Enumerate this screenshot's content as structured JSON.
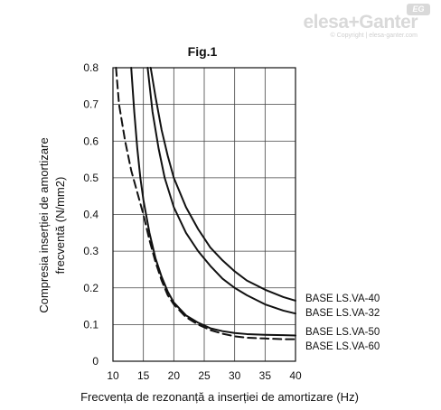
{
  "watermark": {
    "brand": "elesa+Ganter",
    "badge": "EG",
    "copyright": "© Copyright | elesa-ganter.com"
  },
  "chart_data": {
    "type": "line",
    "title": "Fig.1",
    "xlabel": "Frecvența de rezonanță a inserției de amortizare (Hz)",
    "ylabel_lines": [
      "Compresia inserției de amortizare",
      "frecventă (N/mm2)"
    ],
    "xlim": [
      10,
      40
    ],
    "ylim": [
      0,
      0.8
    ],
    "x_ticks": [
      10,
      15,
      20,
      25,
      30,
      35,
      40
    ],
    "y_ticks": [
      0,
      0.1,
      0.2,
      0.3,
      0.4,
      0.5,
      0.6,
      0.7,
      0.8
    ],
    "x_tick_labels": [
      "10",
      "15",
      "20",
      "25",
      "30",
      "35",
      "40"
    ],
    "y_tick_labels": [
      "0",
      "0.1",
      "0.2",
      "0.3",
      "0.4",
      "0.5",
      "0.6",
      "0.7",
      "0.8"
    ],
    "grid": true,
    "series": [
      {
        "name": "BASE LS.VA-40",
        "style": "solid",
        "x": [
          16.2,
          17,
          18,
          19,
          20,
          22,
          24,
          26,
          28,
          30,
          32,
          35,
          38,
          40
        ],
        "y": [
          0.8,
          0.72,
          0.63,
          0.56,
          0.5,
          0.42,
          0.36,
          0.31,
          0.275,
          0.245,
          0.22,
          0.195,
          0.175,
          0.165
        ]
      },
      {
        "name": "BASE LS.VA-32",
        "style": "solid",
        "x": [
          15.7,
          16.5,
          17.5,
          18.5,
          20,
          22,
          24,
          26,
          28,
          30,
          32,
          35,
          38,
          40
        ],
        "y": [
          0.8,
          0.68,
          0.58,
          0.5,
          0.42,
          0.35,
          0.3,
          0.26,
          0.225,
          0.2,
          0.18,
          0.155,
          0.138,
          0.13
        ]
      },
      {
        "name": "BASE LS.VA-50",
        "style": "solid",
        "x": [
          13,
          13.5,
          14,
          14.5,
          15,
          16,
          17,
          18,
          19,
          20,
          22,
          24,
          26,
          28,
          30,
          32,
          35,
          38,
          40
        ],
        "y": [
          0.8,
          0.68,
          0.58,
          0.5,
          0.44,
          0.35,
          0.28,
          0.23,
          0.19,
          0.16,
          0.125,
          0.105,
          0.09,
          0.082,
          0.077,
          0.074,
          0.072,
          0.071,
          0.07
        ]
      },
      {
        "name": "BASE LS.VA-60",
        "style": "dashed",
        "x": [
          10.5,
          11,
          12,
          13,
          14,
          15,
          16,
          17,
          18,
          19,
          20,
          22,
          24,
          26,
          28,
          30,
          32,
          35,
          38,
          40
        ],
        "y": [
          0.8,
          0.7,
          0.6,
          0.52,
          0.46,
          0.4,
          0.33,
          0.27,
          0.22,
          0.18,
          0.155,
          0.12,
          0.1,
          0.085,
          0.075,
          0.068,
          0.064,
          0.062,
          0.06,
          0.06
        ]
      }
    ]
  }
}
